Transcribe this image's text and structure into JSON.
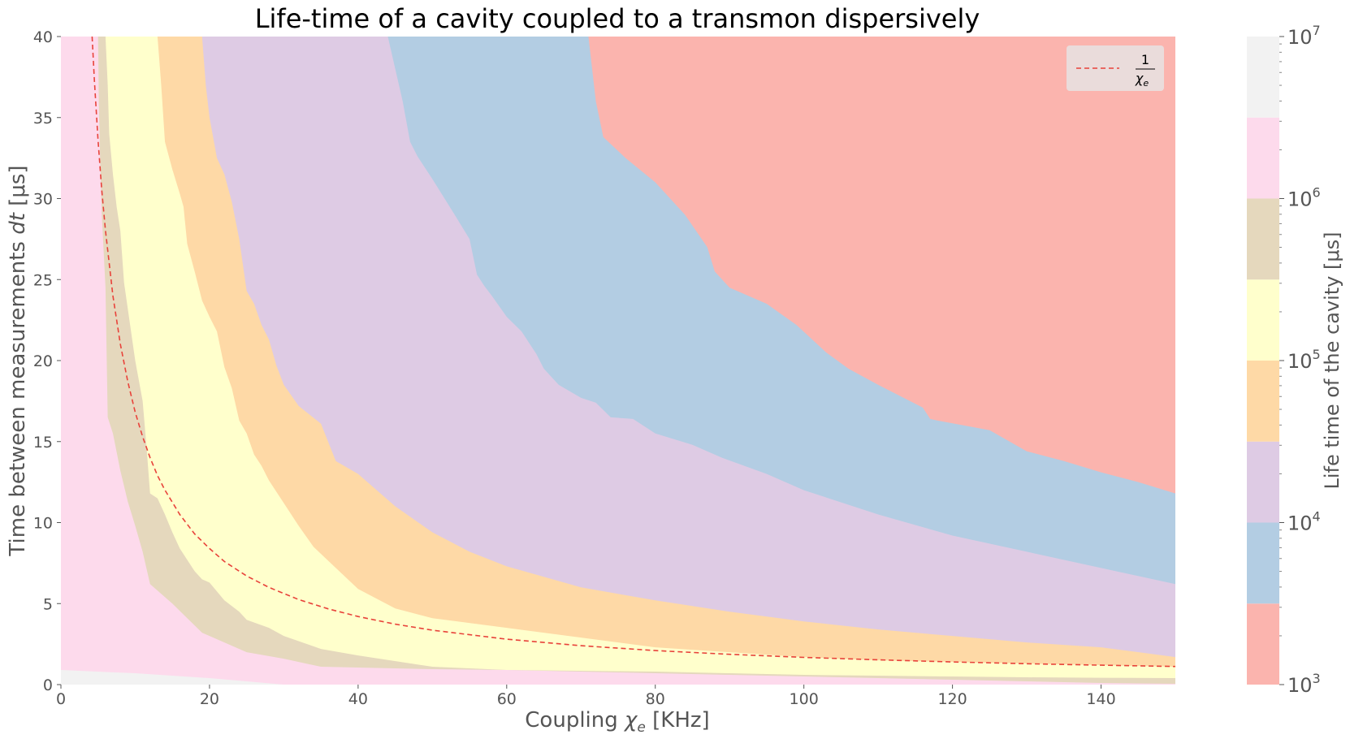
{
  "chart_data": {
    "type": "contourf",
    "title": "Life-time of a cavity coupled to a transmon dispersively",
    "xlabel_main": "Coupling ",
    "xlabel_symbol": "χ",
    "xlabel_sub": "e",
    "xlabel_unit": " [KHz]",
    "ylabel_main": "Time between measurements ",
    "ylabel_symbol": "dt",
    "ylabel_unit": " [μs]",
    "xlim": [
      0,
      150
    ],
    "ylim": [
      0,
      40
    ],
    "x_ticks": [
      0,
      20,
      40,
      60,
      80,
      100,
      120,
      140
    ],
    "y_ticks": [
      0,
      5,
      10,
      15,
      20,
      25,
      30,
      35,
      40
    ],
    "grid": false,
    "colorbar": {
      "label": "Life time of the cavity [μs]",
      "scale": "log",
      "range": [
        1000,
        10000000
      ],
      "tick_base": "10",
      "tick_exponents": [
        "3",
        "4",
        "5",
        "6",
        "7"
      ],
      "level_exponents": [
        3,
        3.5,
        4,
        4.5,
        5,
        5.5,
        6,
        6.5,
        7
      ]
    },
    "legend": {
      "position": "top-right",
      "entry_numerator": "1",
      "entry_symbol": "χ",
      "entry_sub": "e",
      "line_color": "#e8423a",
      "line_style": "dashed"
    },
    "band_colors": [
      "#fbb4ae",
      "#b3cde3",
      "#decbe4",
      "#fed9a6",
      "#ffffcc",
      "#e5d8bd",
      "#fddaec",
      "#f2f2f2"
    ],
    "bands": [
      {
        "range": "1e3 – 3e3",
        "color": "#fbb4ae",
        "top_y": [
          40,
          40,
          40,
          40,
          40,
          40,
          40
        ],
        "bottom_y": [
          40,
          40,
          40,
          40,
          40,
          40,
          40
        ]
      },
      {
        "range": "boundary 3e3",
        "color": "#b3cde3",
        "x": [
          71,
          72,
          73,
          76,
          80,
          84,
          87,
          88,
          90,
          95,
          99,
          103,
          106,
          110,
          116,
          117,
          118,
          125,
          130,
          135,
          140,
          145,
          150
        ],
        "y": [
          40,
          36,
          33.8,
          32.5,
          31,
          29,
          27,
          25.5,
          24.5,
          23.5,
          22.2,
          20.5,
          19.5,
          18.5,
          17.1,
          16.4,
          16.3,
          15.7,
          14.4,
          13.8,
          13.1,
          12.5,
          11.8
        ]
      },
      {
        "range": "boundary 1e4",
        "color": "#decbe4",
        "x": [
          44,
          45,
          46,
          47,
          48,
          50,
          53,
          55,
          56,
          57,
          58,
          60,
          62,
          64,
          65,
          67,
          70,
          72,
          74,
          77,
          79,
          80,
          85,
          89,
          95,
          100,
          110,
          120,
          130,
          140,
          150
        ],
        "y": [
          40,
          38,
          36,
          33.5,
          32.6,
          31.2,
          29,
          27.5,
          25.3,
          24.6,
          24,
          22.7,
          21.8,
          20.4,
          19.5,
          18.5,
          17.7,
          17.4,
          16.5,
          16.4,
          15.8,
          15.5,
          14.8,
          14,
          13,
          12,
          10.5,
          9.2,
          8.2,
          7.2,
          6.2
        ]
      },
      {
        "range": "boundary 3e4",
        "color": "#fed9a6",
        "x": [
          19,
          19.5,
          20,
          21,
          22,
          23,
          24,
          25,
          26,
          27,
          28,
          29,
          30,
          32,
          35,
          37,
          40,
          45,
          50,
          55,
          60,
          70,
          80,
          90,
          100,
          110,
          120,
          130,
          140,
          150
        ],
        "y": [
          40,
          37,
          35,
          32.5,
          31.5,
          29.8,
          27.5,
          24.3,
          23.5,
          22.2,
          21.3,
          19.7,
          18.5,
          17.2,
          16.1,
          13.8,
          13,
          11,
          9.4,
          8.2,
          7.3,
          6,
          5.2,
          4.5,
          3.9,
          3.4,
          3,
          2.6,
          2.3,
          1.7
        ]
      },
      {
        "range": "boundary 1e5",
        "color": "#ffffcc",
        "x": [
          13,
          13.5,
          14,
          15,
          16,
          16.5,
          17,
          18,
          19,
          20,
          21,
          22,
          23,
          24,
          25,
          26,
          27,
          28,
          30,
          32,
          34,
          37,
          40,
          45,
          50,
          60,
          70,
          80,
          90,
          100,
          110,
          120,
          130,
          140,
          150
        ],
        "y": [
          40,
          37,
          33.5,
          31.8,
          30.3,
          29.5,
          27.2,
          25.5,
          23.7,
          22.7,
          21.8,
          19.6,
          18.3,
          16.3,
          15.5,
          14.2,
          13.5,
          12.6,
          11.2,
          9.8,
          8.5,
          7.2,
          5.9,
          4.7,
          4.1,
          3.5,
          2.9,
          2.3,
          2.0,
          1.7,
          1.5,
          1.4,
          1.3,
          1.2,
          1.1
        ]
      },
      {
        "range": "boundary 3e5",
        "color": "#e5d8bd",
        "x": [
          6,
          6.3,
          6.5,
          7,
          7.5,
          8,
          8.5,
          9,
          10,
          11,
          11.5,
          12,
          13,
          14,
          15,
          16,
          17,
          18,
          19,
          20,
          22,
          24,
          25,
          28,
          30,
          35,
          40,
          50,
          60,
          70,
          80,
          90,
          100,
          110,
          120,
          130,
          140,
          150
        ],
        "y": [
          40,
          37,
          34,
          31.5,
          29.5,
          28,
          24.8,
          23.2,
          20,
          17.5,
          14.8,
          11.8,
          11.5,
          10.5,
          9.4,
          8.4,
          7.7,
          7.0,
          6.5,
          6.3,
          5.2,
          4.5,
          4.0,
          3.5,
          3.0,
          2.2,
          1.8,
          1.1,
          0.9,
          0.85,
          0.8,
          0.7,
          0.6,
          0.55,
          0.5,
          0.45,
          0.42,
          0.4
        ]
      },
      {
        "range": "boundary 1e6",
        "color": "#fddaec",
        "x": [
          5,
          5.1,
          5.3,
          5.5,
          6,
          6.3,
          7,
          8,
          9,
          10,
          11,
          12,
          13,
          15,
          17,
          19,
          20,
          25,
          30,
          35,
          40,
          50,
          60,
          70,
          80,
          90,
          100,
          110,
          120,
          130,
          140,
          150
        ],
        "y": [
          40,
          36,
          32,
          29,
          24.5,
          16.5,
          15.5,
          13.2,
          11.3,
          9.8,
          8.2,
          6.2,
          5.8,
          5.0,
          4.1,
          3.2,
          3.0,
          2.0,
          1.6,
          1.1,
          1.05,
          0.95,
          0.9,
          0.8,
          0.7,
          0.6,
          0.5,
          0.4,
          0.3,
          0.2,
          0.1,
          0.05
        ]
      },
      {
        "range": "boundary 3e6",
        "color": "#f2f2f2",
        "x": [
          0,
          10,
          20,
          30,
          40,
          60,
          80,
          100,
          120,
          150
        ],
        "y": [
          0.9,
          0.7,
          0.4,
          0.0,
          0.0,
          0.0,
          0.0,
          0.0,
          0.0,
          0.0
        ]
      }
    ],
    "reference_curve": {
      "name": "1/χe",
      "x": [
        4.2,
        4.5,
        5,
        5.5,
        6,
        7,
        8,
        9,
        10,
        11,
        12,
        13,
        14,
        16,
        18,
        20,
        22,
        25,
        28,
        32,
        36,
        40,
        45,
        50,
        60,
        70,
        80,
        90,
        100,
        110,
        120,
        130,
        140,
        150
      ],
      "y": [
        40,
        37.3,
        33.6,
        30.5,
        28,
        24,
        21,
        18.7,
        16.8,
        15.3,
        14,
        12.9,
        12,
        10.5,
        9.3,
        8.4,
        7.6,
        6.7,
        6.0,
        5.25,
        4.67,
        4.2,
        3.73,
        3.36,
        2.8,
        2.4,
        2.1,
        1.87,
        1.68,
        1.53,
        1.4,
        1.29,
        1.2,
        1.12
      ]
    }
  }
}
